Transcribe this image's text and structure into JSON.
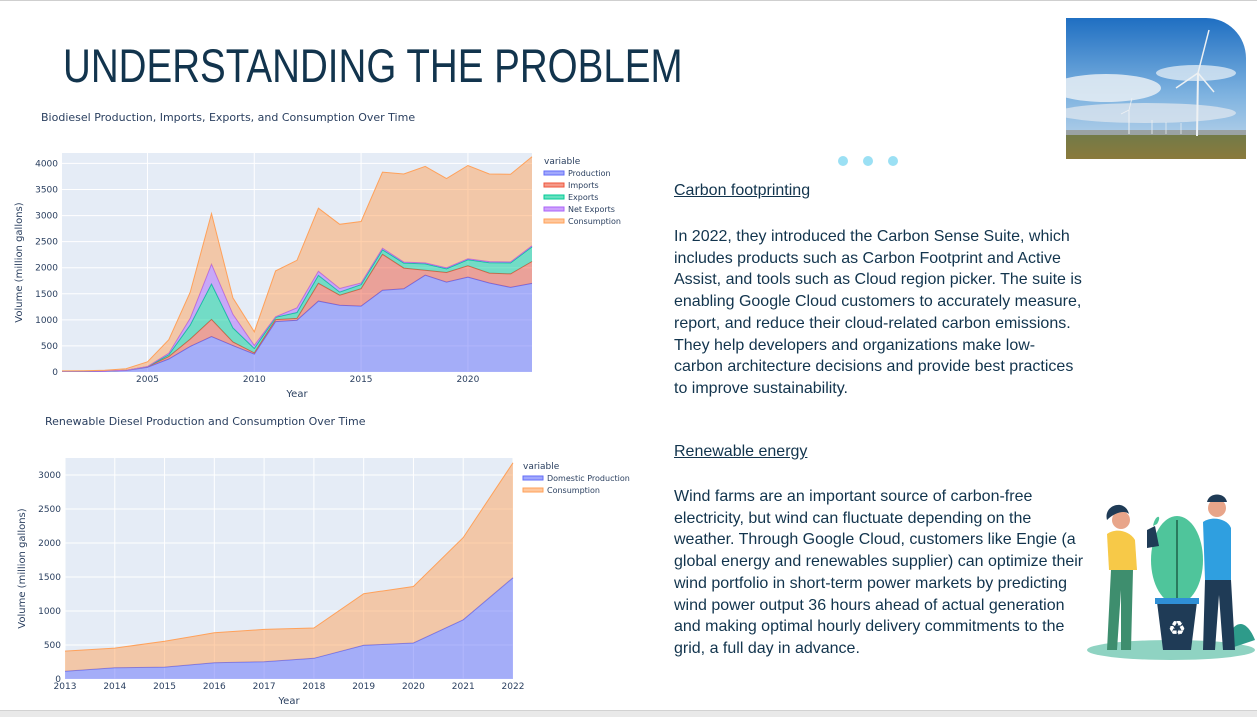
{
  "page": {
    "title": "UNDERSTANDING THE PROBLEM"
  },
  "colors": {
    "title": "#12344d",
    "plot_bg": "#e5ecf6",
    "production": "#636efa",
    "imports": "#ef553b",
    "exports": "#00cc96",
    "net_exports": "#ab63fa",
    "consumption": "#ffa15a",
    "carousel_dot": "#9be0f4"
  },
  "sections": [
    {
      "heading": "Carbon footprinting",
      "body": "In 2022, they introduced the Carbon Sense Suite, which includes products such as Carbon Footprint and Active Assist, and tools such as Cloud region picker. The suite is enabling Google Cloud customers to accurately measure, report, and reduce their cloud-related carbon emissions. They help developers and organizations make low-carbon architecture decisions and provide best practices to improve sustainability."
    },
    {
      "heading": "Renewable energy",
      "body": "Wind farms are an important source of carbon-free electricity, but wind can fluctuate depending on the weather. Through Google Cloud, customers like Engie (a global energy and renewables supplier) can optimize their wind portfolio in short-term power markets by predicting wind power output 36 hours ahead of actual generation and making optimal hourly delivery commitments to the grid, a full day in advance."
    }
  ],
  "images": {
    "top_right": "wind-turbines-photo",
    "bottom_right": "recycling-plant-people-illustration"
  },
  "carousel": {
    "count": 3
  },
  "chart_data": [
    {
      "type": "area",
      "stacked": true,
      "title": "Biodiesel Production, Imports, Exports, and Consumption Over Time",
      "xlabel": "Year",
      "ylabel": "Volume (million gallons)",
      "xlim": [
        2001,
        2023
      ],
      "ylim": [
        0,
        4200
      ],
      "x_ticks": [
        2005,
        2010,
        2015,
        2020
      ],
      "y_ticks": [
        0,
        500,
        1000,
        1500,
        2000,
        2500,
        3000,
        3500,
        4000
      ],
      "legend_title": "variable",
      "legend_position": "right",
      "x": [
        2001,
        2002,
        2003,
        2004,
        2005,
        2006,
        2007,
        2008,
        2009,
        2010,
        2011,
        2012,
        2013,
        2014,
        2015,
        2016,
        2017,
        2018,
        2019,
        2020,
        2021,
        2022,
        2023
      ],
      "series": [
        {
          "name": "Production",
          "values": [
            9,
            10,
            14,
            28,
            91,
            250,
            490,
            678,
            506,
            343,
            967,
            991,
            1359,
            1279,
            1263,
            1568,
            1596,
            1857,
            1724,
            1820,
            1707,
            1622,
            1700
          ]
        },
        {
          "name": "Imports",
          "values": [
            2,
            3,
            4,
            4,
            9,
            45,
            140,
            330,
            70,
            23,
            37,
            36,
            343,
            193,
            334,
            690,
            397,
            96,
            185,
            216,
            190,
            260,
            420
          ]
        },
        {
          "name": "Exports",
          "values": [
            1,
            1,
            1,
            1,
            3,
            35,
            270,
            680,
            270,
            85,
            45,
            115,
            150,
            60,
            80,
            86,
            95,
            120,
            70,
            115,
            200,
            210,
            280
          ]
        },
        {
          "name": "Net Exports",
          "values": [
            0,
            0,
            0,
            0,
            2,
            30,
            130,
            380,
            260,
            60,
            10,
            90,
            80,
            70,
            30,
            30,
            20,
            20,
            20,
            20,
            20,
            20,
            20
          ]
        },
        {
          "name": "Consumption",
          "values": [
            10,
            11,
            15,
            30,
            90,
            260,
            500,
            970,
            315,
            260,
            880,
            910,
            1210,
            1230,
            1180,
            1460,
            1690,
            1850,
            1710,
            1790,
            1680,
            1680,
            1710
          ]
        }
      ]
    },
    {
      "type": "area",
      "stacked": true,
      "title": "Renewable Diesel Production and Consumption Over Time",
      "xlabel": "Year",
      "ylabel": "Volume (million gallons)",
      "xlim": [
        2013,
        2022
      ],
      "ylim": [
        0,
        3250
      ],
      "x_ticks": [
        2013,
        2014,
        2015,
        2016,
        2017,
        2018,
        2019,
        2020,
        2021,
        2022
      ],
      "y_ticks": [
        0,
        500,
        1000,
        1500,
        2000,
        2500,
        3000
      ],
      "legend_title": "variable",
      "legend_position": "right",
      "x": [
        2013,
        2014,
        2015,
        2016,
        2017,
        2018,
        2019,
        2020,
        2021,
        2022
      ],
      "series": [
        {
          "name": "Domestic Production",
          "values": [
            115,
            165,
            175,
            240,
            255,
            305,
            495,
            530,
            870,
            1490
          ]
        },
        {
          "name": "Consumption",
          "values": [
            295,
            290,
            380,
            440,
            475,
            445,
            760,
            830,
            1210,
            1690
          ]
        }
      ]
    }
  ]
}
